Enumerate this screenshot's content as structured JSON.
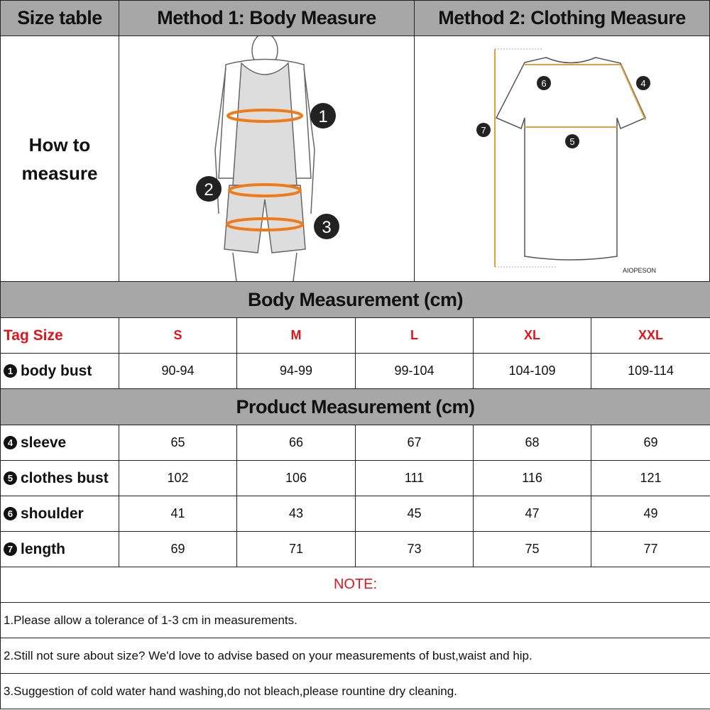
{
  "header": {
    "col1": "Size table",
    "col2": "Method 1: Body  Measure",
    "col3": "Method 2: Clothing Measure"
  },
  "how_to": "How to measure",
  "illustration": {
    "body_markers": [
      "1",
      "2",
      "3"
    ],
    "shirt_markers": [
      "4",
      "5",
      "6",
      "7"
    ],
    "brand": "AIOPESON"
  },
  "body_section": {
    "title": "Body Measurement (cm)",
    "tag_label": "Tag Size",
    "sizes": [
      "S",
      "M",
      "L",
      "XL",
      "XXL"
    ],
    "rows": [
      {
        "num": "1",
        "label": "body bust",
        "values": [
          "90-94",
          "94-99",
          "99-104",
          "104-109",
          "109-114"
        ]
      }
    ]
  },
  "product_section": {
    "title": "Product Measurement (cm)",
    "rows": [
      {
        "num": "4",
        "label": "sleeve",
        "values": [
          "65",
          "66",
          "67",
          "68",
          "69"
        ]
      },
      {
        "num": "5",
        "label": "clothes bust",
        "values": [
          "102",
          "106",
          "111",
          "116",
          "121"
        ]
      },
      {
        "num": "6",
        "label": "shoulder",
        "values": [
          "41",
          "43",
          "45",
          "47",
          "49"
        ]
      },
      {
        "num": "7",
        "label": "length",
        "values": [
          "69",
          "71",
          "73",
          "75",
          "77"
        ]
      }
    ]
  },
  "note": {
    "title": "NOTE:",
    "lines": [
      "1.Please allow a tolerance of 1-3 cm in measurements.",
      "2.Still not sure about size? We'd love to advise based on your measurements of bust,waist and hip.",
      "3.Suggestion of cold water hand washing,do not bleach,please rountine dry cleaning."
    ]
  },
  "colors": {
    "header_bg": "#a7a7a7",
    "accent_red": "#e0151b",
    "measure_orange": "#f07a1a"
  }
}
